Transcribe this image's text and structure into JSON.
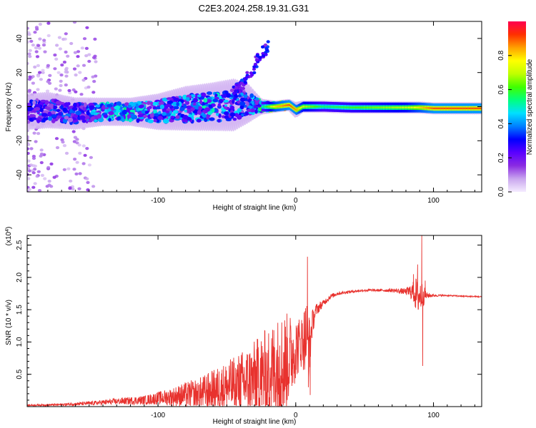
{
  "title": "C2E3.2024.258.19.31.G31",
  "chart_data": [
    {
      "type": "heatmap",
      "panel": "spectrogram",
      "xlabel": "Height of straight line (km)",
      "ylabel": "Frequency (Hz)",
      "xlim": [
        -195,
        135
      ],
      "ylim": [
        -50,
        50
      ],
      "xticks": [
        -100,
        0,
        100
      ],
      "yticks": [
        -40,
        -20,
        0,
        20,
        40
      ],
      "colorbar": {
        "label": "Normalized spectral amplitude",
        "range": [
          0,
          1
        ],
        "ticks": [
          "0.0",
          "0.2",
          "0.4",
          "0.6",
          "0.8"
        ],
        "colors": [
          "#f5ecff",
          "#c9a6ee",
          "#8a2be2",
          "#5a00ff",
          "#0000ff",
          "#0080ff",
          "#00e0ff",
          "#00ff80",
          "#40ff00",
          "#c0ff00",
          "#ffff00",
          "#ffa000",
          "#ff3000",
          "#ff0050"
        ]
      },
      "trace": {
        "x": [
          -195,
          -180,
          -160,
          -140,
          -120,
          -100,
          -80,
          -60,
          -45,
          -35,
          -25,
          -15,
          -5,
          0,
          5,
          20,
          40,
          60,
          80,
          90,
          100,
          120,
          135
        ],
        "f": [
          -3,
          -2,
          -4,
          -3,
          -3,
          -3,
          -1,
          0,
          1,
          2,
          0,
          0,
          1,
          -2,
          0,
          0,
          -0.5,
          -0.5,
          -0.5,
          -0.5,
          -1,
          -1,
          -1
        ],
        "amplitude": [
          0.25,
          0.35,
          0.3,
          0.45,
          0.45,
          0.4,
          0.4,
          0.45,
          0.4,
          0.35,
          0.5,
          0.8,
          0.9,
          0.85,
          0.7,
          0.55,
          0.6,
          0.65,
          0.7,
          0.8,
          0.9,
          0.9,
          0.9
        ],
        "spread_hz": [
          9,
          9,
          8,
          7,
          7,
          9,
          11,
          12,
          13,
          10,
          4,
          3,
          3,
          4,
          3,
          3,
          3,
          3,
          3,
          3,
          3,
          3,
          3
        ]
      },
      "branch": {
        "x": [
          -45,
          -40,
          -35,
          -30,
          -25,
          -20
        ],
        "f": [
          8,
          12,
          18,
          24,
          30,
          36
        ],
        "amplitude": 0.3
      }
    },
    {
      "type": "line",
      "panel": "snr",
      "xlabel": "Height of straight line (km)",
      "ylabel": "SNR (10 * v/v)",
      "y_multiplier": "(x10",
      "y_multiplier_exp": "4",
      "y_multiplier_close": ")",
      "color": "#e8322e",
      "xlim": [
        -195,
        135
      ],
      "ylim": [
        0,
        2.65
      ],
      "xticks": [
        -100,
        0,
        100
      ],
      "yticks": [
        0.5,
        1.0,
        1.5,
        2.0,
        2.5
      ],
      "ytick_labels": [
        "0.5",
        "1.0",
        "1.5",
        "2.0",
        "2.5"
      ],
      "envelope": {
        "x": [
          -195,
          -170,
          -150,
          -130,
          -110,
          -100,
          -90,
          -80,
          -70,
          -60,
          -50,
          -40,
          -30,
          -20,
          -15,
          -10,
          -5,
          0,
          4,
          8,
          10,
          12,
          15,
          20,
          25,
          30,
          40,
          50,
          60,
          70,
          80,
          85,
          88,
          90,
          92,
          95,
          100,
          110,
          120,
          135
        ],
        "base": [
          0.02,
          0.03,
          0.05,
          0.08,
          0.1,
          0.13,
          0.15,
          0.18,
          0.2,
          0.25,
          0.3,
          0.35,
          0.42,
          0.5,
          0.55,
          0.62,
          0.75,
          0.9,
          1.0,
          1.1,
          0.9,
          1.3,
          1.5,
          1.6,
          1.7,
          1.75,
          1.78,
          1.8,
          1.8,
          1.8,
          1.78,
          1.78,
          1.72,
          1.72,
          1.72,
          1.72,
          1.72,
          1.72,
          1.71,
          1.7
        ],
        "noise": [
          0.01,
          0.02,
          0.03,
          0.05,
          0.07,
          0.1,
          0.14,
          0.2,
          0.25,
          0.32,
          0.4,
          0.5,
          0.6,
          0.75,
          0.8,
          0.85,
          0.7,
          0.5,
          0.4,
          0.6,
          0.5,
          0.2,
          0.1,
          0.05,
          0.04,
          0.03,
          0.02,
          0.02,
          0.02,
          0.03,
          0.05,
          0.15,
          0.3,
          0.3,
          0.2,
          0.05,
          0.02,
          0.01,
          0.01,
          0.01
        ]
      },
      "spikes": [
        {
          "x": 8.5,
          "y": 2.32
        },
        {
          "x": 9.2,
          "y": 0.3
        },
        {
          "x": 10.5,
          "y": 0.18
        },
        {
          "x": 85.5,
          "y": 2.05
        },
        {
          "x": 88.5,
          "y": 2.2
        },
        {
          "x": 91.5,
          "y": 2.65
        },
        {
          "x": 92.2,
          "y": 0.63
        },
        {
          "x": 94,
          "y": 1.95
        }
      ]
    }
  ]
}
